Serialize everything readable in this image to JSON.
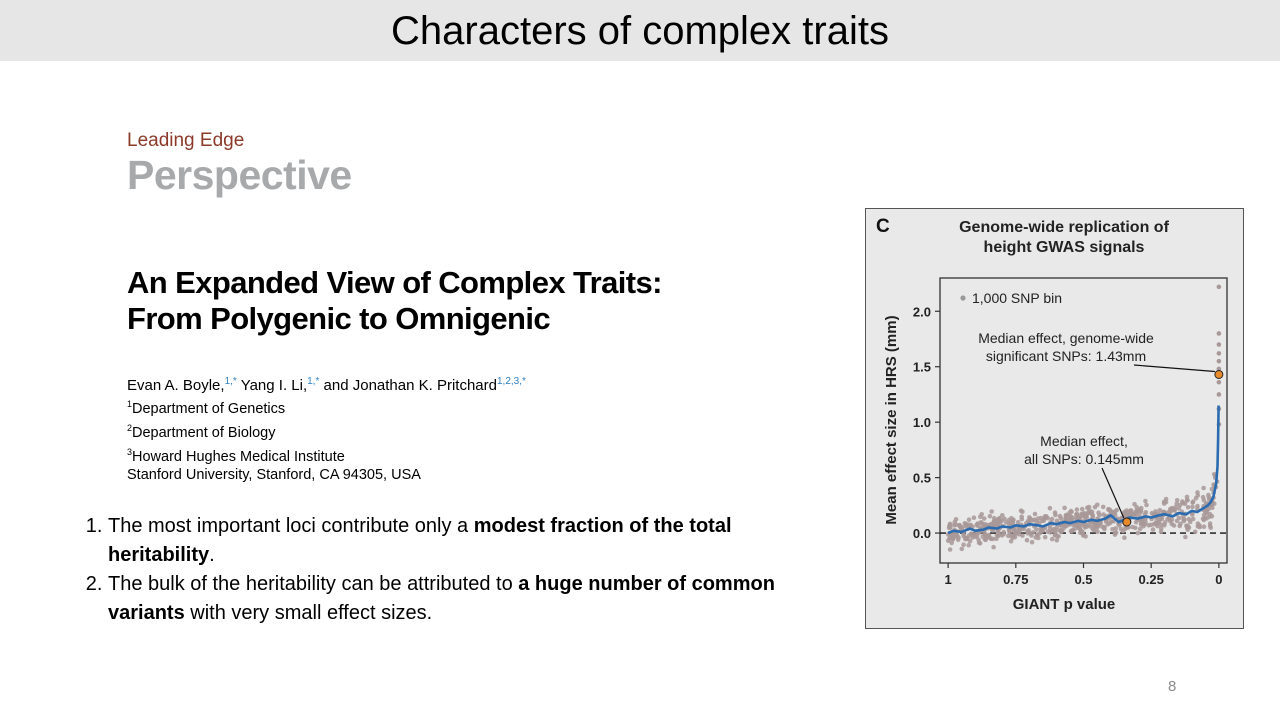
{
  "slide": {
    "title": "Characters of complex traits",
    "page_number": "8"
  },
  "paper": {
    "journal_label": "Leading Edge",
    "journal_type": "Perspective",
    "title_line1": "An Expanded View of Complex Traits:",
    "title_line2": "From Polygenic to Omnigenic",
    "authors": [
      {
        "name": "Evan A. Boyle,",
        "sup": "1,*"
      },
      {
        "name": " Yang I. Li,",
        "sup": "1,*"
      },
      {
        "name": " and Jonathan K. Pritchard",
        "sup": "1,2,3,*"
      }
    ],
    "affiliations": [
      {
        "sup": "1",
        "text": "Department of Genetics"
      },
      {
        "sup": "2",
        "text": "Department of Biology"
      },
      {
        "sup": "3",
        "text": "Howard Hughes Medical Institute"
      },
      {
        "sup": "",
        "text": "Stanford University, Stanford, CA 94305, USA"
      }
    ]
  },
  "points": [
    {
      "pre": "The most important loci contribute only a ",
      "bold": "modest fraction of the total heritability",
      "post": "."
    },
    {
      "pre": "The bulk of the heritability can be attributed to ",
      "bold": "a huge number of common variants",
      "post": " with very small effect sizes."
    }
  ],
  "chart_data": {
    "type": "scatter",
    "panel_letter": "C",
    "title_line1": "Genome-wide replication of",
    "title_line2": "height GWAS signals",
    "xlabel": "GIANT p value",
    "ylabel": "Mean effect size in HRS (mm)",
    "x_ticks": [
      1,
      0.75,
      0.5,
      0.25,
      0
    ],
    "x_tick_labels": [
      "1",
      "0.75",
      "0.5",
      "0.25",
      "0"
    ],
    "y_ticks": [
      0.0,
      0.5,
      1.0,
      1.5,
      2.0
    ],
    "y_tick_labels": [
      "0.0",
      "0.5",
      "1.0",
      "1.5",
      "2.0"
    ],
    "xlim": [
      1.03,
      -0.03
    ],
    "ylim": [
      -0.27,
      2.3
    ],
    "legend": "1,000 SNP bin",
    "legend_position": "top-left",
    "reference_line_y": 0,
    "annotations": [
      {
        "line1": "Median effect, genome-wide",
        "line2": "significant SNPs: 1.43mm",
        "x": 0.0,
        "y": 1.43
      },
      {
        "line1": "Median effect,",
        "line2": "all SNPs: 0.145mm",
        "x": 0.34,
        "y": 0.1
      }
    ],
    "colors": {
      "points": "#a89898",
      "trend": "#2b6cb0",
      "marker": "#e88a2a",
      "background": "#e9e9e9"
    },
    "trend_line": {
      "x": [
        1.0,
        0.98,
        0.95,
        0.92,
        0.9,
        0.87,
        0.85,
        0.82,
        0.8,
        0.77,
        0.75,
        0.72,
        0.7,
        0.67,
        0.65,
        0.62,
        0.6,
        0.57,
        0.55,
        0.52,
        0.5,
        0.47,
        0.45,
        0.42,
        0.4,
        0.37,
        0.35,
        0.33,
        0.3,
        0.27,
        0.25,
        0.22,
        0.2,
        0.17,
        0.15,
        0.12,
        0.1,
        0.08,
        0.06,
        0.04,
        0.03,
        0.02,
        0.01,
        0.005,
        0.003,
        0.001
      ],
      "y": [
        0.0,
        0.02,
        0.01,
        0.04,
        0.02,
        0.03,
        0.05,
        0.04,
        0.06,
        0.05,
        0.07,
        0.06,
        0.08,
        0.07,
        0.06,
        0.09,
        0.08,
        0.1,
        0.09,
        0.11,
        0.1,
        0.12,
        0.11,
        0.13,
        0.16,
        0.1,
        0.12,
        0.14,
        0.13,
        0.15,
        0.14,
        0.16,
        0.17,
        0.15,
        0.18,
        0.17,
        0.2,
        0.19,
        0.22,
        0.25,
        0.28,
        0.33,
        0.45,
        0.6,
        0.85,
        1.15
      ]
    },
    "top_bin_points": {
      "x": [
        0.0,
        0.0,
        0.0,
        0.0,
        0.0,
        0.0,
        0.0,
        0.0,
        0.0,
        0.0
      ],
      "y": [
        2.22,
        1.8,
        1.7,
        1.62,
        1.55,
        1.48,
        1.36,
        1.25,
        1.12,
        0.98
      ]
    }
  }
}
